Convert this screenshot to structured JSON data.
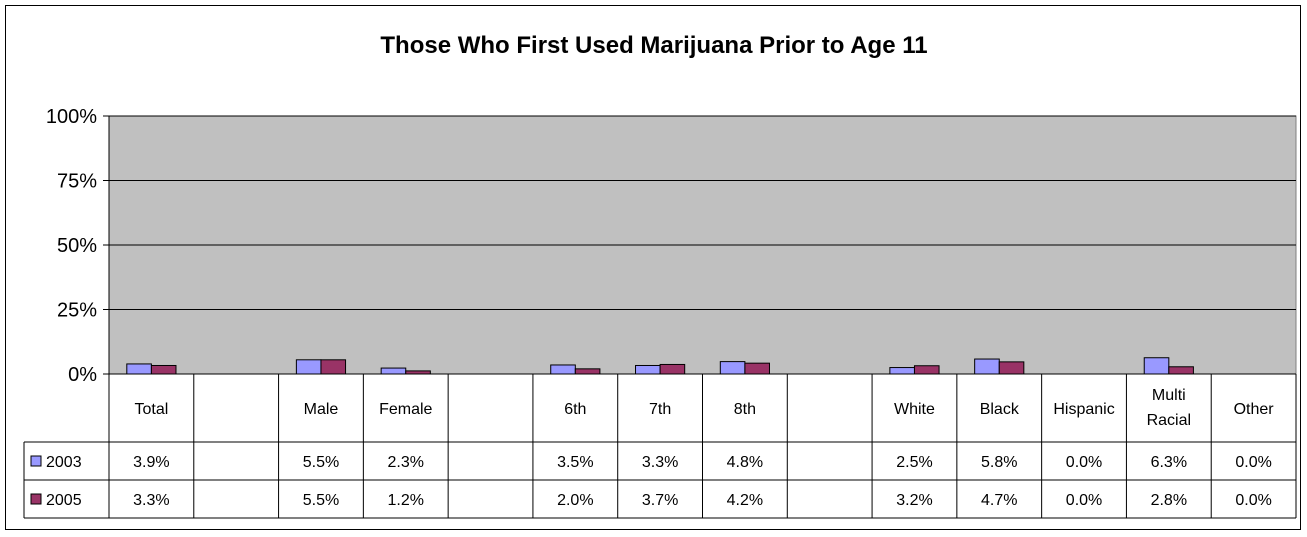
{
  "chart_data": {
    "type": "bar",
    "title": "Those Who First Used Marijuana Prior to Age 11",
    "xlabel": "",
    "ylabel": "",
    "ylim": [
      0,
      100
    ],
    "yticks": [
      "0%",
      "25%",
      "50%",
      "75%",
      "100%"
    ],
    "grid": true,
    "legend": "data-table-left",
    "categories": [
      "Total",
      "",
      "Male",
      "Female",
      "",
      "6th",
      "7th",
      "8th",
      "",
      "White",
      "Black",
      "Hispanic",
      "Multi Racial",
      "Other"
    ],
    "series": [
      {
        "name": "2003",
        "color": "#9999ff",
        "values": [
          3.9,
          null,
          5.5,
          2.3,
          null,
          3.5,
          3.3,
          4.8,
          null,
          2.5,
          5.8,
          0.0,
          6.3,
          0.0
        ],
        "labels": [
          "3.9%",
          "",
          "5.5%",
          "2.3%",
          "",
          "3.5%",
          "3.3%",
          "4.8%",
          "",
          "2.5%",
          "5.8%",
          "0.0%",
          "6.3%",
          "0.0%"
        ]
      },
      {
        "name": "2005",
        "color": "#993366",
        "values": [
          3.3,
          null,
          5.5,
          1.2,
          null,
          2.0,
          3.7,
          4.2,
          null,
          3.2,
          4.7,
          0.0,
          2.8,
          0.0
        ],
        "labels": [
          "3.3%",
          "",
          "5.5%",
          "1.2%",
          "",
          "2.0%",
          "3.7%",
          "4.2%",
          "",
          "3.2%",
          "4.7%",
          "0.0%",
          "2.8%",
          "0.0%"
        ]
      }
    ],
    "plot_background": "#c0c0c0"
  }
}
